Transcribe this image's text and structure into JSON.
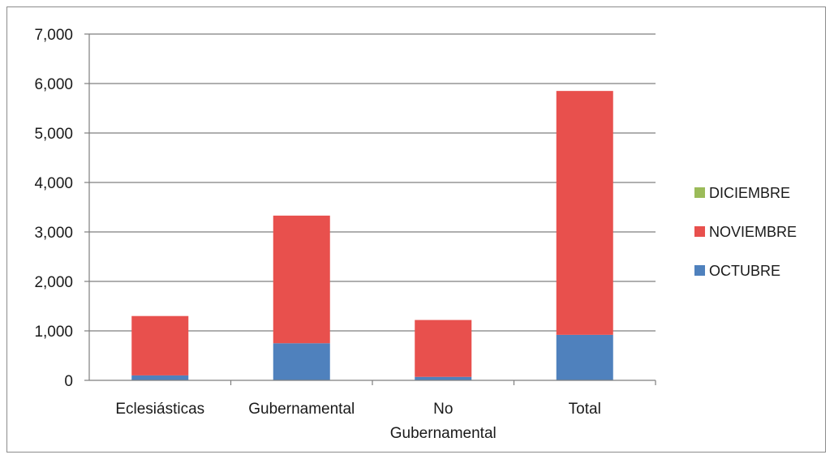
{
  "chart_data": {
    "type": "bar",
    "stacked": true,
    "categories": [
      "Eclesiásticas",
      "Gubernamental",
      "No Gubernamental",
      "Total"
    ],
    "category_lines": [
      [
        "Eclesiásticas"
      ],
      [
        "Gubernamental"
      ],
      [
        "No",
        "Gubernamental"
      ],
      [
        "Total"
      ]
    ],
    "series": [
      {
        "name": "OCTUBRE",
        "color": "#4f81bd",
        "values": [
          100,
          750,
          70,
          920
        ]
      },
      {
        "name": "NOVIEMBRE",
        "color": "#e8504d",
        "values": [
          1200,
          2580,
          1150,
          4930
        ]
      },
      {
        "name": "DICIEMBRE",
        "color": "#9bbb59",
        "values": [
          0,
          0,
          0,
          0
        ]
      }
    ],
    "legend_order": [
      "DICIEMBRE",
      "NOVIEMBRE",
      "OCTUBRE"
    ],
    "ylim": [
      0,
      7000
    ],
    "yticks": [
      0,
      1000,
      2000,
      3000,
      4000,
      5000,
      6000,
      7000
    ],
    "ytick_labels": [
      "0",
      "1,000",
      "2,000",
      "3,000",
      "4,000",
      "5,000",
      "6,000",
      "7,000"
    ],
    "grid": true,
    "legend_position": "right",
    "title": "",
    "xlabel": "",
    "ylabel": ""
  }
}
